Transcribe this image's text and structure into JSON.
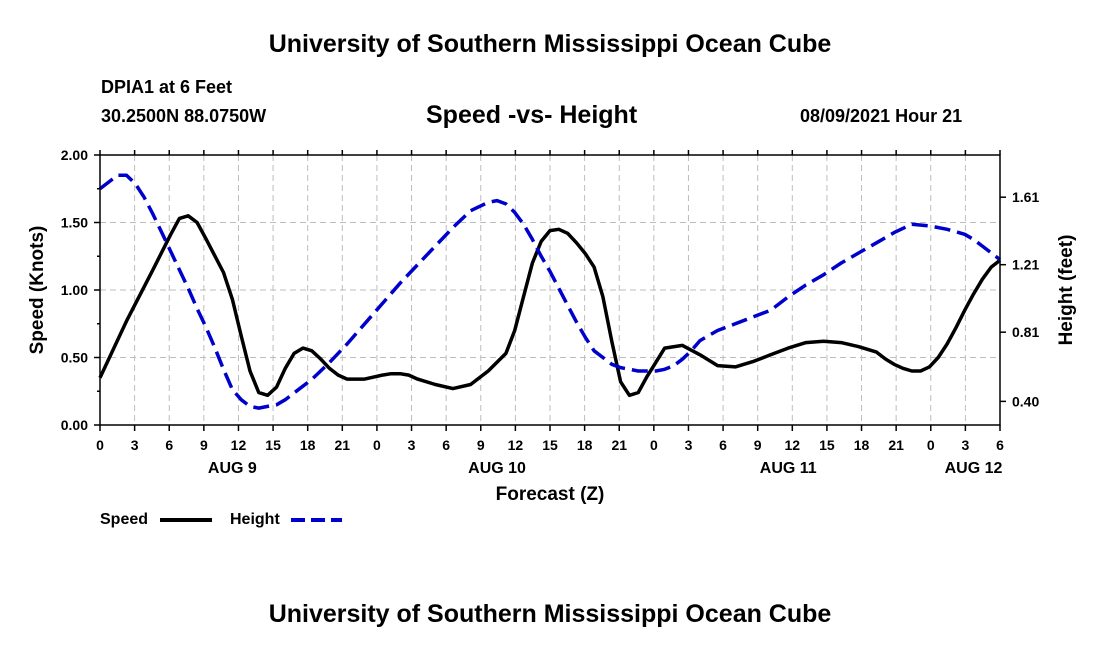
{
  "header": {
    "title": "University of Southern Mississippi Ocean Cube"
  },
  "footer": {
    "title": "University of Southern Mississippi Ocean Cube"
  },
  "station": {
    "name": "DPIA1 at 6 Feet",
    "coords": "30.2500N  88.0750W"
  },
  "date_label": "08/09/2021 Hour 21",
  "chart_data": {
    "type": "line",
    "title": "Speed -vs- Height",
    "xlabel": "Forecast (Z)",
    "ylabel": "Speed (Knots)",
    "y2label": "Height (feet)",
    "xlim": [
      0,
      102
    ],
    "ylim": [
      0,
      2
    ],
    "y2lim": [
      0.26,
      1.86
    ],
    "grid": true,
    "legend_position": "bottom-left",
    "x_ticks": [
      "0",
      "3",
      "6",
      "9",
      "12",
      "15",
      "18",
      "21",
      "0",
      "3",
      "6",
      "9",
      "12",
      "15",
      "18",
      "21",
      "0",
      "3",
      "6",
      "9",
      "12",
      "15",
      "18",
      "21",
      "0",
      "3",
      "6"
    ],
    "y_ticks": [
      "0.00",
      "0.50",
      "1.00",
      "1.50",
      "2.00"
    ],
    "y_tick_values": [
      0,
      0.5,
      1.0,
      1.5,
      2.0
    ],
    "y2_ticks": [
      "0.40",
      "0.81",
      "1.21",
      "1.61"
    ],
    "y2_tick_values": [
      0.4,
      0.81,
      1.21,
      1.61
    ],
    "date_labels": [
      {
        "label": "AUG 9",
        "x": 15
      },
      {
        "label": "AUG 10",
        "x": 45
      },
      {
        "label": "AUG 11",
        "x": 78
      },
      {
        "label": "AUG 12",
        "x": 99
      }
    ],
    "series": [
      {
        "name": "Speed",
        "axis": "left",
        "color": "#000000",
        "dash": "solid",
        "x": [
          0,
          3,
          6,
          8,
          9,
          10,
          11,
          12,
          14,
          15,
          16,
          17,
          18,
          19,
          20,
          21,
          22,
          23,
          24,
          25,
          26,
          27,
          28,
          30,
          32,
          33,
          34,
          35,
          36,
          38,
          40,
          42,
          44,
          46,
          47,
          48,
          49,
          50,
          51,
          52,
          53,
          54,
          55,
          56,
          57,
          58,
          59,
          60,
          61,
          62,
          64,
          66,
          68,
          70,
          72,
          74,
          76,
          78,
          80,
          82,
          84,
          86,
          88,
          89,
          90,
          91,
          92,
          93,
          94,
          95,
          96,
          97,
          98,
          99,
          100,
          101,
          102
        ],
        "y": [
          0.35,
          0.77,
          1.15,
          1.41,
          1.53,
          1.55,
          1.5,
          1.38,
          1.13,
          0.93,
          0.66,
          0.4,
          0.24,
          0.22,
          0.28,
          0.42,
          0.53,
          0.57,
          0.55,
          0.49,
          0.42,
          0.37,
          0.34,
          0.34,
          0.37,
          0.38,
          0.38,
          0.37,
          0.34,
          0.3,
          0.27,
          0.3,
          0.4,
          0.53,
          0.7,
          0.95,
          1.2,
          1.36,
          1.44,
          1.45,
          1.42,
          1.35,
          1.27,
          1.17,
          0.95,
          0.62,
          0.32,
          0.22,
          0.24,
          0.36,
          0.57,
          0.59,
          0.52,
          0.44,
          0.43,
          0.47,
          0.52,
          0.57,
          0.61,
          0.62,
          0.61,
          0.58,
          0.54,
          0.49,
          0.45,
          0.42,
          0.4,
          0.4,
          0.43,
          0.5,
          0.6,
          0.72,
          0.85,
          0.97,
          1.08,
          1.17,
          1.22
        ]
      },
      {
        "name": "Height",
        "axis": "right",
        "color": "#0000cc",
        "dash": "dashed",
        "x": [
          0,
          1,
          2,
          3,
          4,
          5,
          6,
          7,
          8,
          9,
          10,
          11,
          12,
          13,
          14,
          15,
          16,
          17,
          18,
          19,
          20,
          21,
          22,
          23,
          24,
          25,
          26,
          28,
          30,
          32,
          34,
          36,
          38,
          40,
          42,
          44,
          45,
          46,
          47,
          48,
          49,
          50,
          51,
          52,
          53,
          54,
          55,
          56,
          57,
          58,
          59,
          60,
          61,
          62,
          63,
          64,
          65,
          66,
          67,
          68,
          70,
          72,
          74,
          76,
          78,
          80,
          82,
          84,
          86,
          88,
          90,
          92,
          94,
          96,
          98,
          99,
          100,
          101,
          102
        ],
        "y": [
          1.66,
          1.7,
          1.74,
          1.74,
          1.69,
          1.61,
          1.51,
          1.4,
          1.29,
          1.18,
          1.07,
          0.95,
          0.84,
          0.72,
          0.59,
          0.47,
          0.41,
          0.37,
          0.36,
          0.37,
          0.38,
          0.41,
          0.45,
          0.49,
          0.53,
          0.58,
          0.63,
          0.74,
          0.86,
          0.98,
          1.1,
          1.21,
          1.32,
          1.43,
          1.53,
          1.58,
          1.59,
          1.57,
          1.52,
          1.45,
          1.36,
          1.26,
          1.17,
          1.07,
          0.97,
          0.87,
          0.78,
          0.7,
          0.66,
          0.62,
          0.6,
          0.59,
          0.58,
          0.58,
          0.58,
          0.59,
          0.61,
          0.65,
          0.7,
          0.76,
          0.82,
          0.86,
          0.9,
          0.94,
          1.02,
          1.09,
          1.15,
          1.22,
          1.28,
          1.34,
          1.4,
          1.45,
          1.44,
          1.42,
          1.39,
          1.36,
          1.32,
          1.28,
          1.24
        ]
      }
    ]
  },
  "legend": {
    "speed_label": "Speed",
    "height_label": "Height"
  }
}
